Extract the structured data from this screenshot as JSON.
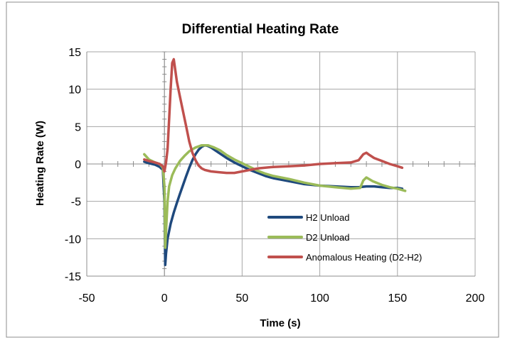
{
  "chart_data": {
    "type": "line",
    "title": "Differential Heating Rate",
    "xlabel": "Time (s)",
    "ylabel": "Heating Rate (W)",
    "xlim": [
      -50,
      200
    ],
    "ylim": [
      -15,
      15
    ],
    "xticks": [
      -50,
      0,
      50,
      100,
      150,
      200
    ],
    "yticks": [
      -15,
      -10,
      -5,
      0,
      5,
      10,
      15
    ],
    "x_tick_labels": [
      "-50",
      "0",
      "50",
      "100",
      "150",
      "200"
    ],
    "y_tick_labels": [
      "-15",
      "-10",
      "-5",
      "0",
      "5",
      "10",
      "15"
    ],
    "grid": true,
    "legend_position": "bottom-right",
    "series": [
      {
        "name": "H2 Unload",
        "color": "#1F497D",
        "x": [
          -13,
          -10,
          -6,
          -3,
          -1,
          0,
          0.5,
          1,
          2,
          4,
          6,
          8,
          10,
          12,
          14,
          16,
          18,
          20,
          22,
          24,
          26,
          28,
          30,
          35,
          40,
          45,
          50,
          55,
          60,
          65,
          70,
          80,
          90,
          100,
          110,
          120,
          125,
          130,
          135,
          140,
          145,
          150,
          153
        ],
        "y": [
          0.3,
          0.1,
          -0.1,
          -0.4,
          -0.8,
          -5,
          -13.5,
          -12,
          -10,
          -8,
          -6.5,
          -5.2,
          -4,
          -2.8,
          -1.6,
          -0.5,
          0.5,
          1.3,
          1.9,
          2.3,
          2.5,
          2.4,
          2.2,
          1.5,
          0.8,
          0.2,
          -0.3,
          -0.8,
          -1.2,
          -1.6,
          -1.9,
          -2.3,
          -2.7,
          -2.9,
          -3.0,
          -3.1,
          -3.1,
          -3.0,
          -3.0,
          -3.1,
          -3.2,
          -3.2,
          -3.3
        ]
      },
      {
        "name": "D2 Unload",
        "color": "#9BBB59",
        "x": [
          -13,
          -10,
          -6,
          -3,
          -1,
          0,
          0.5,
          1,
          2,
          3,
          5,
          7,
          10,
          13,
          16,
          20,
          24,
          28,
          32,
          36,
          40,
          45,
          50,
          55,
          60,
          65,
          70,
          80,
          90,
          100,
          110,
          120,
          126,
          128,
          130,
          134,
          140,
          145,
          150,
          155
        ],
        "y": [
          1.3,
          0.6,
          0.2,
          0.0,
          -0.5,
          -3,
          -11.2,
          -9,
          -5,
          -3,
          -1.5,
          -0.6,
          0.4,
          1.1,
          1.7,
          2.2,
          2.5,
          2.5,
          2.2,
          1.8,
          1.2,
          0.6,
          0.1,
          -0.4,
          -0.9,
          -1.3,
          -1.6,
          -2.0,
          -2.5,
          -2.9,
          -3.1,
          -3.3,
          -3.2,
          -2.2,
          -1.8,
          -2.3,
          -2.8,
          -3.1,
          -3.3,
          -3.6
        ]
      },
      {
        "name": "Anomalous Heating (D2-H2)",
        "color": "#C0504D",
        "x": [
          -13,
          -10,
          -6,
          -3,
          -1,
          0,
          1,
          2,
          3,
          4,
          5,
          6,
          7,
          8,
          10,
          12,
          14,
          16,
          18,
          20,
          22,
          24,
          26,
          28,
          30,
          35,
          40,
          45,
          50,
          55,
          60,
          70,
          80,
          90,
          100,
          110,
          120,
          125,
          128,
          130,
          132,
          135,
          140,
          145,
          150,
          153
        ],
        "y": [
          0.6,
          0.4,
          0.2,
          0.0,
          -0.3,
          -1,
          0.2,
          2.0,
          6.0,
          10.0,
          13.5,
          14.0,
          12.5,
          11.0,
          9.0,
          7.0,
          5.0,
          3.0,
          1.5,
          0.5,
          -0.2,
          -0.6,
          -0.8,
          -0.9,
          -1.0,
          -1.1,
          -1.2,
          -1.2,
          -1.0,
          -0.8,
          -0.6,
          -0.4,
          -0.3,
          -0.2,
          0.0,
          0.1,
          0.2,
          0.5,
          1.3,
          1.5,
          1.2,
          0.8,
          0.4,
          0.0,
          -0.3,
          -0.5
        ]
      }
    ]
  }
}
